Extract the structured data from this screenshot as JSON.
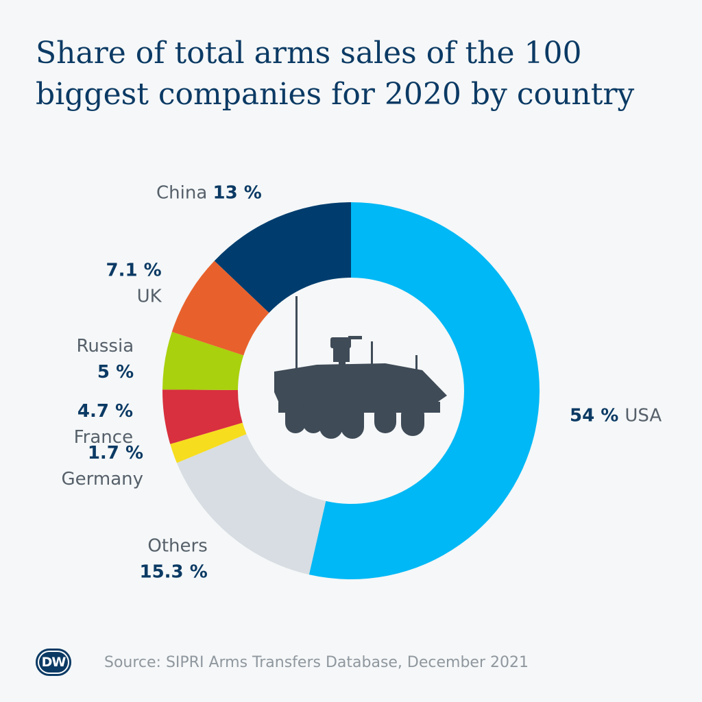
{
  "title": "Share of total arms sales of the 100 biggest companies for 2020 by country",
  "source": "Source: SIPRI Arms Transfers Database, December 2021",
  "logo": "DW",
  "center_icon": "armored-vehicle-icon",
  "chart_data": {
    "type": "pie",
    "variant": "donut",
    "unit": "%",
    "slices": [
      {
        "label": "USA",
        "value": 54,
        "value_label": "54 %",
        "color": "#00b8f5",
        "label_layout": "inline",
        "value_first": true
      },
      {
        "label": "Others",
        "value": 15.3,
        "value_label": "15.3 %",
        "color": "#d7dde2",
        "label_layout": "stacked",
        "value_first": false
      },
      {
        "label": "Germany",
        "value": 1.7,
        "value_label": "1.7 %",
        "color": "#f6dd1e",
        "label_layout": "stacked",
        "value_first": true
      },
      {
        "label": "France",
        "value": 4.7,
        "value_label": "4.7 %",
        "color": "#d8303e",
        "label_layout": "stacked",
        "value_first": true
      },
      {
        "label": "Russia",
        "value": 5,
        "value_label": "5 %",
        "color": "#a9d10d",
        "label_layout": "stacked",
        "value_first": false
      },
      {
        "label": "UK",
        "value": 7.1,
        "value_label": "7.1 %",
        "color": "#e8612c",
        "label_layout": "stacked",
        "value_first": true
      },
      {
        "label": "China",
        "value": 13,
        "value_label": "13 %",
        "color": "#003d6e",
        "label_layout": "inline",
        "value_first": false
      }
    ]
  }
}
